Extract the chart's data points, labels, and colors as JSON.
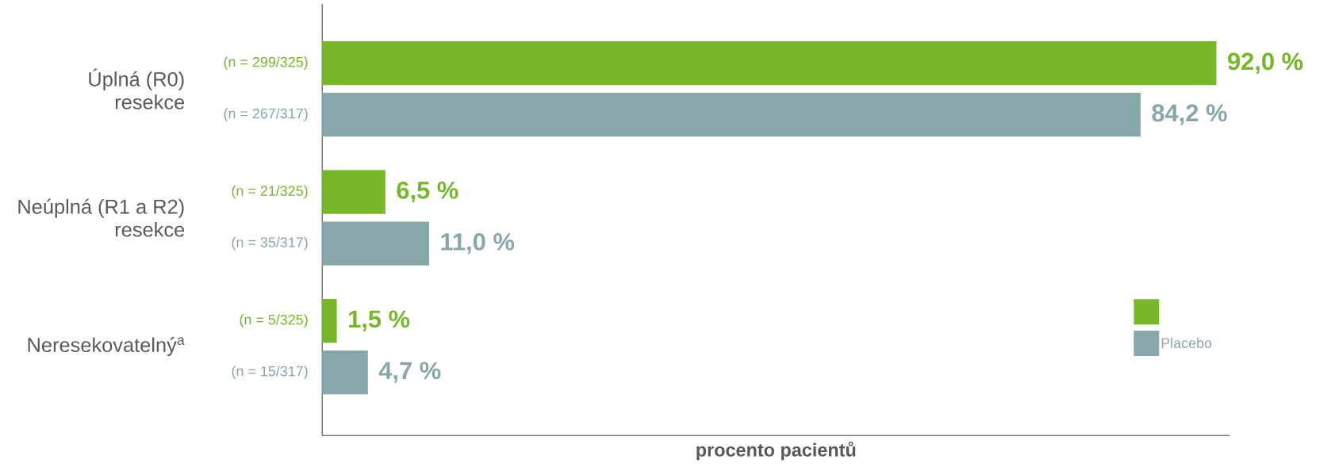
{
  "chart_data": {
    "type": "bar",
    "orientation": "horizontal",
    "tick_labels": "y",
    "legend": "right",
    "categories": [
      "Úplná (R0) resekce",
      "Neúplná (R1 a R2) resekce",
      "Neresekovatelný$^{a}$"
    ],
    "xlabel": "procento pacientů",
    "series": [
      {
        "color": "#76b82a",
        "values": [
          92.0,
          6.5,
          1.5
        ],
        "value_labels": [
          "92,0 %",
          "6,5 %",
          "1,5 %"
        ]
      },
      {
        "name": "Placebo",
        "color": "#87a7ab",
        "values": [
          84.2,
          11.0,
          4.7
        ],
        "value_labels": [
          "84,2 %",
          "11,0 %",
          "4,7 %"
        ]
      }
    ],
    "annotations": [
      "(n = 299/325)",
      "(n = 267/317)",
      "(n = 21/325)",
      "(n = 35/317)",
      "(n = 5/325)",
      "(n = 15/317)"
    ]
  }
}
